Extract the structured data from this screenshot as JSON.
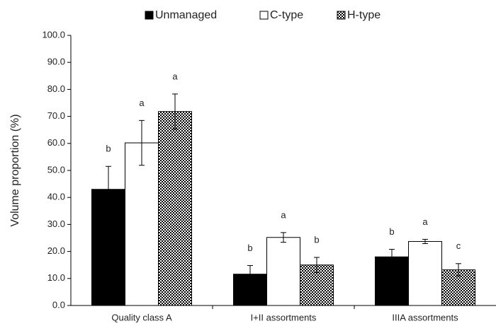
{
  "chart_data": {
    "type": "bar",
    "y_label": "Volume proportion (%)",
    "categories": [
      "Quality class A",
      "I+II assortments",
      "IIIA assortments"
    ],
    "series": [
      {
        "name": "Unmanaged",
        "color": "#000000",
        "values": [
          43.0,
          11.6,
          18.0
        ],
        "errors": [
          8.5,
          3.2,
          2.8
        ],
        "labels": [
          "b",
          "b",
          "b"
        ]
      },
      {
        "name": "C-type",
        "color": "#ffffff",
        "values": [
          60.2,
          25.2,
          23.7
        ],
        "errors": [
          8.3,
          1.8,
          0.8
        ],
        "labels": [
          "a",
          "a",
          "a"
        ]
      },
      {
        "name": "H-type",
        "color": "#000000",
        "fill_pattern": "checkerboard",
        "values": [
          71.8,
          15.0,
          13.2
        ],
        "errors": [
          6.5,
          2.8,
          2.3
        ],
        "labels": [
          "a",
          "b",
          "c"
        ]
      }
    ],
    "ylim": [
      0,
      100
    ],
    "yticks": [
      {
        "value": 0,
        "label": "0.0"
      },
      {
        "value": 10,
        "label": "10.0"
      },
      {
        "value": 20,
        "label": "20.0"
      },
      {
        "value": 30,
        "label": "30.0"
      },
      {
        "value": 40,
        "label": "40.0"
      },
      {
        "value": 50,
        "label": "50.0"
      },
      {
        "value": 60,
        "label": "60.0"
      },
      {
        "value": 70,
        "label": "70.0"
      },
      {
        "value": 80,
        "label": "80.0"
      },
      {
        "value": 90,
        "label": "90.0"
      },
      {
        "value": 100,
        "label": "100.0"
      }
    ],
    "legend": "top"
  }
}
